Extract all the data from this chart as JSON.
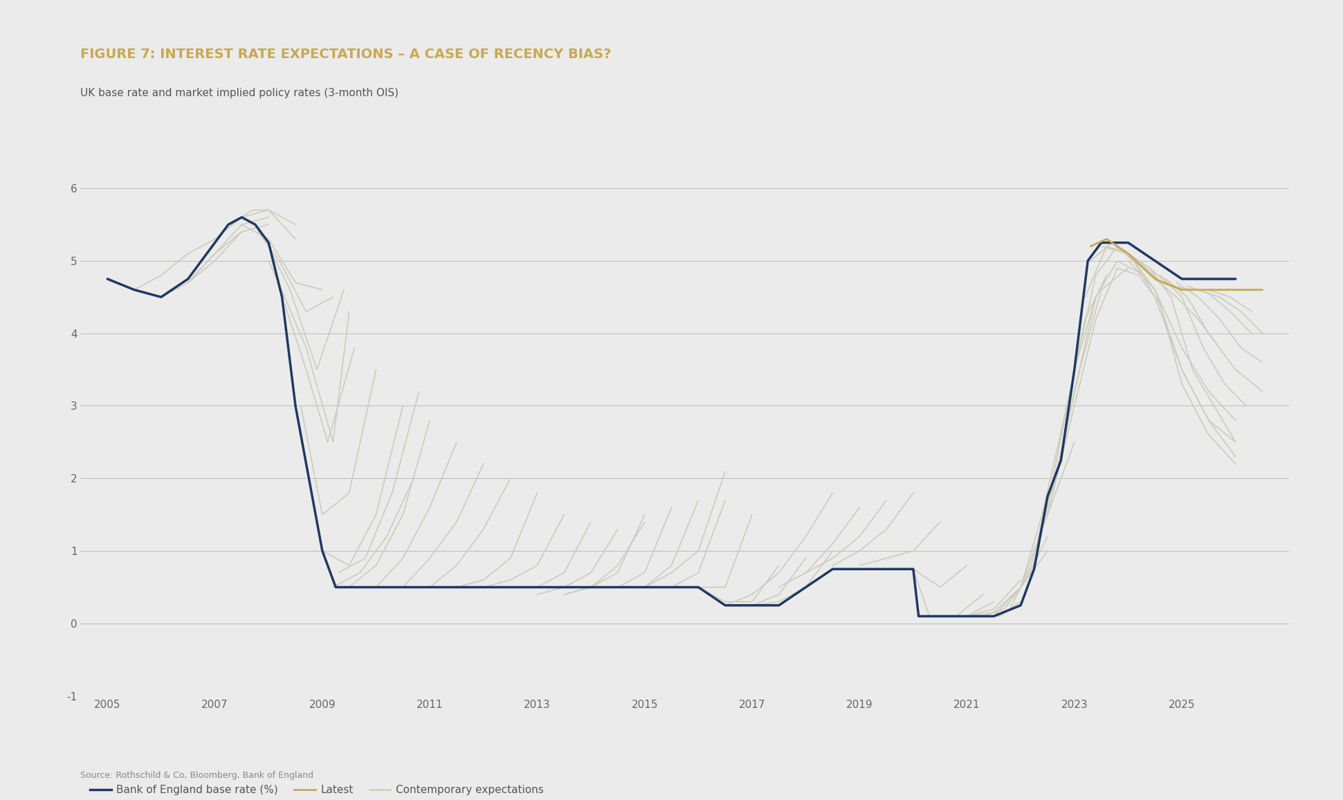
{
  "title": "FIGURE 7: INTEREST RATE EXPECTATIONS – A CASE OF RECENCY BIAS?",
  "subtitle": "UK base rate and market implied policy rates (3-month OIS)",
  "source": "Source: Rothschild & Co, Bloomberg, Bank of England",
  "title_color": "#C8A951",
  "subtitle_color": "#555555",
  "background_color": "#EBEBEB",
  "ylim": [
    -1,
    6.5
  ],
  "yticks": [
    -1,
    0,
    1,
    2,
    3,
    4,
    5,
    6
  ],
  "xticks": [
    2005,
    2007,
    2009,
    2011,
    2013,
    2015,
    2017,
    2019,
    2021,
    2023,
    2025
  ],
  "xlim": [
    2004.5,
    2027.0
  ],
  "boe_color": "#1F3864",
  "latest_color": "#C8A951",
  "contemporary_color": "#CCCCBB",
  "boe_linewidth": 2.5,
  "latest_linewidth": 2.0,
  "contemporary_linewidth": 1.2,
  "boe_rate": {
    "x": [
      2005.0,
      2005.5,
      2006.0,
      2006.5,
      2007.0,
      2007.25,
      2007.5,
      2007.75,
      2008.0,
      2008.25,
      2008.5,
      2008.75,
      2009.0,
      2009.25,
      2009.5,
      2010.0,
      2011.0,
      2012.0,
      2013.0,
      2014.0,
      2015.0,
      2016.0,
      2016.5,
      2017.0,
      2017.5,
      2018.0,
      2018.5,
      2019.0,
      2019.5,
      2020.0,
      2020.1,
      2020.5,
      2021.0,
      2021.5,
      2022.0,
      2022.25,
      2022.5,
      2022.75,
      2023.0,
      2023.25,
      2023.5,
      2024.0,
      2024.5,
      2025.0,
      2026.0
    ],
    "y": [
      4.75,
      4.6,
      4.5,
      4.75,
      5.25,
      5.5,
      5.6,
      5.5,
      5.25,
      4.5,
      3.0,
      2.0,
      1.0,
      0.5,
      0.5,
      0.5,
      0.5,
      0.5,
      0.5,
      0.5,
      0.5,
      0.5,
      0.25,
      0.25,
      0.25,
      0.5,
      0.75,
      0.75,
      0.75,
      0.75,
      0.1,
      0.1,
      0.1,
      0.1,
      0.25,
      0.75,
      1.75,
      2.25,
      3.5,
      5.0,
      5.25,
      5.25,
      5.0,
      4.75,
      4.75
    ]
  },
  "latest_curve": {
    "x": [
      2023.3,
      2023.6,
      2024.0,
      2024.5,
      2025.0,
      2025.5,
      2026.0,
      2026.5
    ],
    "y": [
      5.2,
      5.3,
      5.1,
      4.75,
      4.6,
      4.6,
      4.6,
      4.6
    ]
  },
  "contemporary_curves": [
    {
      "x": [
        2005.5,
        2006.0,
        2006.5,
        2007.0
      ],
      "y": [
        4.6,
        4.8,
        5.1,
        5.3
      ]
    },
    {
      "x": [
        2006.0,
        2006.5,
        2007.0,
        2007.5
      ],
      "y": [
        4.5,
        4.7,
        5.0,
        5.4
      ]
    },
    {
      "x": [
        2006.5,
        2007.0,
        2007.5,
        2008.0
      ],
      "y": [
        4.7,
        5.1,
        5.5,
        5.6
      ]
    },
    {
      "x": [
        2007.0,
        2007.5,
        2008.0,
        2008.5
      ],
      "y": [
        5.3,
        5.6,
        5.7,
        5.5
      ]
    },
    {
      "x": [
        2007.3,
        2007.7,
        2008.0,
        2008.5
      ],
      "y": [
        5.5,
        5.7,
        5.7,
        5.3
      ]
    },
    {
      "x": [
        2007.5,
        2008.0,
        2008.5,
        2009.0
      ],
      "y": [
        5.5,
        5.3,
        4.7,
        4.6
      ]
    },
    {
      "x": [
        2007.8,
        2008.2,
        2008.7,
        2009.2
      ],
      "y": [
        5.4,
        5.0,
        4.3,
        4.5
      ]
    },
    {
      "x": [
        2008.0,
        2008.4,
        2008.9,
        2009.4
      ],
      "y": [
        5.2,
        4.6,
        3.5,
        4.6
      ]
    },
    {
      "x": [
        2008.3,
        2008.7,
        2009.1,
        2009.6
      ],
      "y": [
        4.4,
        3.5,
        2.5,
        3.8
      ]
    },
    {
      "x": [
        2008.6,
        2009.0,
        2009.5,
        2010.0
      ],
      "y": [
        3.0,
        1.5,
        1.8,
        3.5
      ]
    },
    {
      "x": [
        2009.0,
        2009.5,
        2010.0,
        2010.5
      ],
      "y": [
        1.0,
        0.8,
        1.5,
        3.0
      ]
    },
    {
      "x": [
        2009.3,
        2009.8,
        2010.3,
        2010.8
      ],
      "y": [
        0.7,
        0.9,
        1.8,
        3.2
      ]
    },
    {
      "x": [
        2009.5,
        2010.0,
        2010.5,
        2011.0
      ],
      "y": [
        0.5,
        0.8,
        1.5,
        2.8
      ]
    },
    {
      "x": [
        2010.0,
        2010.5,
        2011.0,
        2011.5
      ],
      "y": [
        0.5,
        0.9,
        1.6,
        2.5
      ]
    },
    {
      "x": [
        2010.5,
        2011.0,
        2011.5,
        2012.0
      ],
      "y": [
        0.5,
        0.9,
        1.4,
        2.2
      ]
    },
    {
      "x": [
        2011.0,
        2011.5,
        2012.0,
        2012.5
      ],
      "y": [
        0.5,
        0.8,
        1.3,
        2.0
      ]
    },
    {
      "x": [
        2012.0,
        2012.5,
        2013.0,
        2013.5
      ],
      "y": [
        0.5,
        0.6,
        0.8,
        1.5
      ]
    },
    {
      "x": [
        2012.5,
        2013.0,
        2013.5,
        2014.0
      ],
      "y": [
        0.5,
        0.5,
        0.7,
        1.4
      ]
    },
    {
      "x": [
        2013.0,
        2013.5,
        2014.0,
        2014.5
      ],
      "y": [
        0.4,
        0.5,
        0.7,
        1.3
      ]
    },
    {
      "x": [
        2013.5,
        2014.0,
        2014.5,
        2015.0
      ],
      "y": [
        0.4,
        0.5,
        0.7,
        1.5
      ]
    },
    {
      "x": [
        2014.0,
        2014.5,
        2015.0,
        2015.5
      ],
      "y": [
        0.5,
        0.5,
        0.7,
        1.6
      ]
    },
    {
      "x": [
        2014.5,
        2015.0,
        2015.5,
        2016.0
      ],
      "y": [
        0.5,
        0.5,
        0.8,
        1.7
      ]
    },
    {
      "x": [
        2015.0,
        2015.5,
        2016.0,
        2016.5
      ],
      "y": [
        0.5,
        0.5,
        0.7,
        1.7
      ]
    },
    {
      "x": [
        2015.5,
        2016.0,
        2016.5,
        2017.0
      ],
      "y": [
        0.5,
        0.5,
        0.5,
        1.5
      ]
    },
    {
      "x": [
        2016.0,
        2016.5,
        2017.0,
        2017.5
      ],
      "y": [
        0.5,
        0.3,
        0.3,
        0.8
      ]
    },
    {
      "x": [
        2016.5,
        2017.0,
        2017.5,
        2018.0
      ],
      "y": [
        0.25,
        0.25,
        0.4,
        0.9
      ]
    },
    {
      "x": [
        2017.0,
        2017.5,
        2018.0,
        2018.5
      ],
      "y": [
        0.25,
        0.3,
        0.5,
        1.0
      ]
    },
    {
      "x": [
        2015.0,
        2015.5,
        2016.0,
        2016.5
      ],
      "y": [
        0.5,
        0.7,
        1.0,
        2.1
      ]
    },
    {
      "x": [
        2016.5,
        2017.0,
        2017.5,
        2018.0,
        2018.5
      ],
      "y": [
        0.25,
        0.4,
        0.7,
        1.2,
        1.8
      ]
    },
    {
      "x": [
        2017.5,
        2018.0,
        2018.5,
        2019.0
      ],
      "y": [
        0.5,
        0.7,
        1.1,
        1.6
      ]
    },
    {
      "x": [
        2018.0,
        2018.5,
        2019.0,
        2019.5
      ],
      "y": [
        0.7,
        0.9,
        1.2,
        1.7
      ]
    },
    {
      "x": [
        2018.5,
        2019.0,
        2019.5,
        2020.0
      ],
      "y": [
        0.8,
        1.0,
        1.3,
        1.8
      ]
    },
    {
      "x": [
        2019.0,
        2019.5,
        2020.0,
        2020.5
      ],
      "y": [
        0.8,
        0.9,
        1.0,
        1.4
      ]
    },
    {
      "x": [
        2019.5,
        2020.0,
        2020.5,
        2021.0
      ],
      "y": [
        0.75,
        0.75,
        0.5,
        0.8
      ]
    },
    {
      "x": [
        2020.0,
        2020.3,
        2020.8,
        2021.3
      ],
      "y": [
        0.75,
        0.1,
        0.1,
        0.4
      ]
    },
    {
      "x": [
        2020.2,
        2020.6,
        2021.0,
        2021.5
      ],
      "y": [
        0.1,
        0.1,
        0.1,
        0.3
      ]
    },
    {
      "x": [
        2020.5,
        2021.0,
        2021.5,
        2022.0
      ],
      "y": [
        0.1,
        0.1,
        0.2,
        0.6
      ]
    },
    {
      "x": [
        2021.0,
        2021.5,
        2022.0,
        2022.5
      ],
      "y": [
        0.1,
        0.15,
        0.5,
        1.0
      ]
    },
    {
      "x": [
        2021.3,
        2021.7,
        2022.1,
        2022.5
      ],
      "y": [
        0.1,
        0.2,
        0.6,
        1.2
      ]
    },
    {
      "x": [
        2021.5,
        2022.0,
        2022.5,
        2023.0
      ],
      "y": [
        0.1,
        0.5,
        1.5,
        2.5
      ]
    },
    {
      "x": [
        2021.8,
        2022.2,
        2022.6,
        2023.0,
        2023.4
      ],
      "y": [
        0.2,
        0.8,
        2.0,
        3.5,
        4.5
      ]
    },
    {
      "x": [
        2022.0,
        2022.4,
        2022.8,
        2023.2,
        2023.6
      ],
      "y": [
        0.5,
        1.5,
        2.8,
        4.2,
        4.8
      ]
    },
    {
      "x": [
        2022.3,
        2022.7,
        2023.1,
        2023.5,
        2024.0
      ],
      "y": [
        1.0,
        2.2,
        3.5,
        4.6,
        4.9
      ]
    },
    {
      "x": [
        2022.6,
        2023.0,
        2023.4,
        2023.8,
        2024.3
      ],
      "y": [
        1.8,
        3.2,
        4.5,
        5.0,
        4.8
      ]
    },
    {
      "x": [
        2023.0,
        2023.4,
        2023.8,
        2024.2,
        2024.6,
        2025.0
      ],
      "y": [
        3.5,
        4.8,
        5.2,
        5.0,
        4.7,
        4.6
      ]
    },
    {
      "x": [
        2023.2,
        2023.6,
        2024.0,
        2024.4,
        2024.8,
        2025.2
      ],
      "y": [
        4.5,
        5.2,
        5.1,
        4.9,
        4.65,
        4.6
      ]
    },
    {
      "x": [
        2023.3,
        2023.7,
        2024.1,
        2024.5,
        2024.9,
        2025.3,
        2025.7
      ],
      "y": [
        5.0,
        5.25,
        5.0,
        4.75,
        4.5,
        4.2,
        3.8
      ]
    },
    {
      "x": [
        2023.5,
        2024.0,
        2024.5,
        2025.0,
        2025.5,
        2026.0
      ],
      "y": [
        5.2,
        5.1,
        4.6,
        3.8,
        3.2,
        2.8
      ]
    },
    {
      "x": [
        2023.7,
        2024.1,
        2024.5,
        2025.0,
        2025.5,
        2026.0
      ],
      "y": [
        5.25,
        5.0,
        4.5,
        3.5,
        2.8,
        2.5
      ]
    },
    {
      "x": [
        2024.0,
        2024.5,
        2025.0,
        2025.5,
        2026.0
      ],
      "y": [
        5.0,
        4.6,
        3.5,
        2.8,
        2.3
      ]
    },
    {
      "x": [
        2024.2,
        2024.6,
        2025.0,
        2025.5,
        2026.0
      ],
      "y": [
        4.8,
        4.4,
        3.3,
        2.6,
        2.2
      ]
    },
    {
      "x": [
        2024.4,
        2024.8,
        2025.2,
        2025.6,
        2026.0
      ],
      "y": [
        4.9,
        4.5,
        3.5,
        3.0,
        2.5
      ]
    },
    {
      "x": [
        2024.6,
        2025.0,
        2025.4,
        2025.8,
        2026.2
      ],
      "y": [
        4.8,
        4.5,
        3.8,
        3.3,
        3.0
      ]
    },
    {
      "x": [
        2024.7,
        2025.1,
        2025.5,
        2026.0,
        2026.5
      ],
      "y": [
        4.75,
        4.5,
        4.0,
        3.5,
        3.2
      ]
    },
    {
      "x": [
        2024.9,
        2025.3,
        2025.7,
        2026.1,
        2026.5
      ],
      "y": [
        4.7,
        4.5,
        4.2,
        3.8,
        3.6
      ]
    },
    {
      "x": [
        2025.1,
        2025.5,
        2025.9,
        2026.3
      ],
      "y": [
        4.65,
        4.55,
        4.3,
        4.0
      ]
    },
    {
      "x": [
        2025.3,
        2025.7,
        2026.1,
        2026.5
      ],
      "y": [
        4.6,
        4.5,
        4.3,
        4.0
      ]
    },
    {
      "x": [
        2025.5,
        2025.9,
        2026.3
      ],
      "y": [
        4.6,
        4.5,
        4.3
      ]
    },
    {
      "x": [
        2006.5,
        2007.0,
        2007.5,
        2008.0
      ],
      "y": [
        4.7,
        5.1,
        5.4,
        5.5
      ]
    },
    {
      "x": [
        2008.0,
        2008.3,
        2008.7,
        2009.2,
        2009.5
      ],
      "y": [
        5.0,
        4.5,
        3.8,
        2.5,
        4.3
      ]
    },
    {
      "x": [
        2009.2,
        2009.7,
        2010.2,
        2010.7
      ],
      "y": [
        0.5,
        0.7,
        1.2,
        2.0
      ]
    },
    {
      "x": [
        2011.5,
        2012.0,
        2012.5,
        2013.0
      ],
      "y": [
        0.5,
        0.6,
        0.9,
        1.8
      ]
    },
    {
      "x": [
        2013.5,
        2014.0,
        2014.5,
        2015.0
      ],
      "y": [
        0.4,
        0.5,
        0.8,
        1.4
      ]
    },
    {
      "x": [
        2020.4,
        2020.8,
        2021.2,
        2021.6,
        2022.0
      ],
      "y": [
        0.1,
        0.1,
        0.1,
        0.1,
        0.3
      ]
    },
    {
      "x": [
        2022.5,
        2023.0,
        2023.4,
        2023.8,
        2024.2
      ],
      "y": [
        1.5,
        3.0,
        4.2,
        4.9,
        4.8
      ]
    }
  ]
}
